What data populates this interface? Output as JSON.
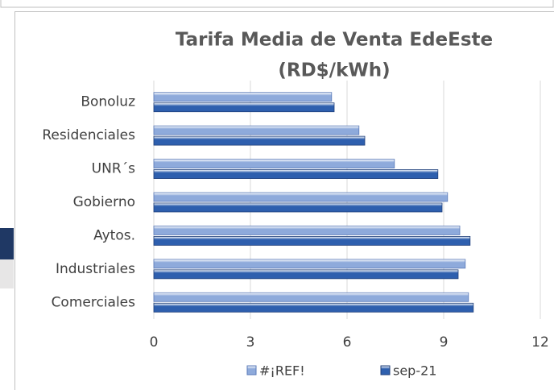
{
  "chart_data": {
    "type": "hbar",
    "title_lines": [
      "Tarifa Media de Venta EdeEste",
      "(RD$/kWh)"
    ],
    "categories": [
      "Bonoluz",
      "Residenciales",
      "UNR´s",
      "Gobierno",
      "Aytos.",
      "Industriales",
      "Comerciales"
    ],
    "series": [
      {
        "name": "#¡REF!",
        "color": "#8eaadb",
        "values": [
          5.52,
          6.37,
          7.47,
          9.12,
          9.5,
          9.67,
          9.77
        ]
      },
      {
        "name": "sep-21",
        "color": "#2e5fae",
        "values": [
          5.6,
          6.55,
          8.82,
          8.95,
          9.82,
          9.45,
          9.92
        ]
      }
    ],
    "xlim": [
      0,
      12
    ],
    "xticks": [
      0,
      3,
      6,
      9,
      12
    ],
    "grid": true,
    "legend": "bottom"
  }
}
